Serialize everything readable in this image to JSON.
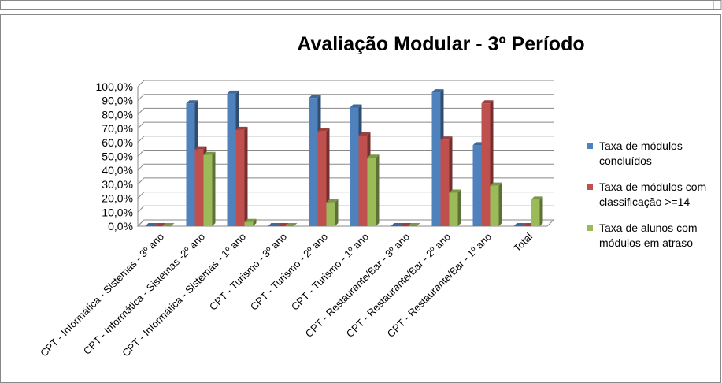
{
  "chart_data": {
    "type": "bar3d",
    "title": "Avaliação Modular - 3º Período",
    "categories": [
      "CPT - Informática - Sistemas - 3º ano",
      "CPT - Informática - Sistemas -2º ano",
      "CPT - Informática - Sistemas - 1º ano",
      "CPT - Turismo - 3º ano",
      "CPT - Turismo - 2º ano",
      "CPT - Turismo - 1º ano",
      "CPT - Restaurante/Bar - 3º ano",
      "CPT - Restaurante/Bar - 2º ano",
      "CPT - Restaurante/Bar - 1º ano",
      "Total"
    ],
    "series": [
      {
        "name": "Taxa de módulos concluídos",
        "color": "#4f81bd",
        "values": [
          0,
          88,
          95,
          0,
          92,
          85,
          0,
          96,
          58,
          0
        ]
      },
      {
        "name": "Taxa de módulos com classificação >=14",
        "color": "#c0504d",
        "values": [
          0,
          55,
          69,
          0,
          68,
          65,
          0,
          62,
          88,
          0
        ]
      },
      {
        "name": "Taxa de alunos com módulos em atraso",
        "color": "#9bbb59",
        "values": [
          0,
          51,
          3,
          0,
          17,
          49,
          0,
          24,
          29,
          19
        ]
      }
    ],
    "ylim": [
      0,
      100
    ],
    "yticks": [
      {
        "value": 0,
        "label": "0,0%"
      },
      {
        "value": 10,
        "label": "10,0%"
      },
      {
        "value": 20,
        "label": "20,0%"
      },
      {
        "value": 30,
        "label": "30,0%"
      },
      {
        "value": 40,
        "label": "40,0%"
      },
      {
        "value": 50,
        "label": "50,0%"
      },
      {
        "value": 60,
        "label": "60,0%"
      },
      {
        "value": 70,
        "label": "70,0%"
      },
      {
        "value": 80,
        "label": "80,0%"
      },
      {
        "value": 90,
        "label": "90,0%"
      },
      {
        "value": 100,
        "label": "100,0%"
      }
    ],
    "grid": true,
    "legend": "right"
  }
}
